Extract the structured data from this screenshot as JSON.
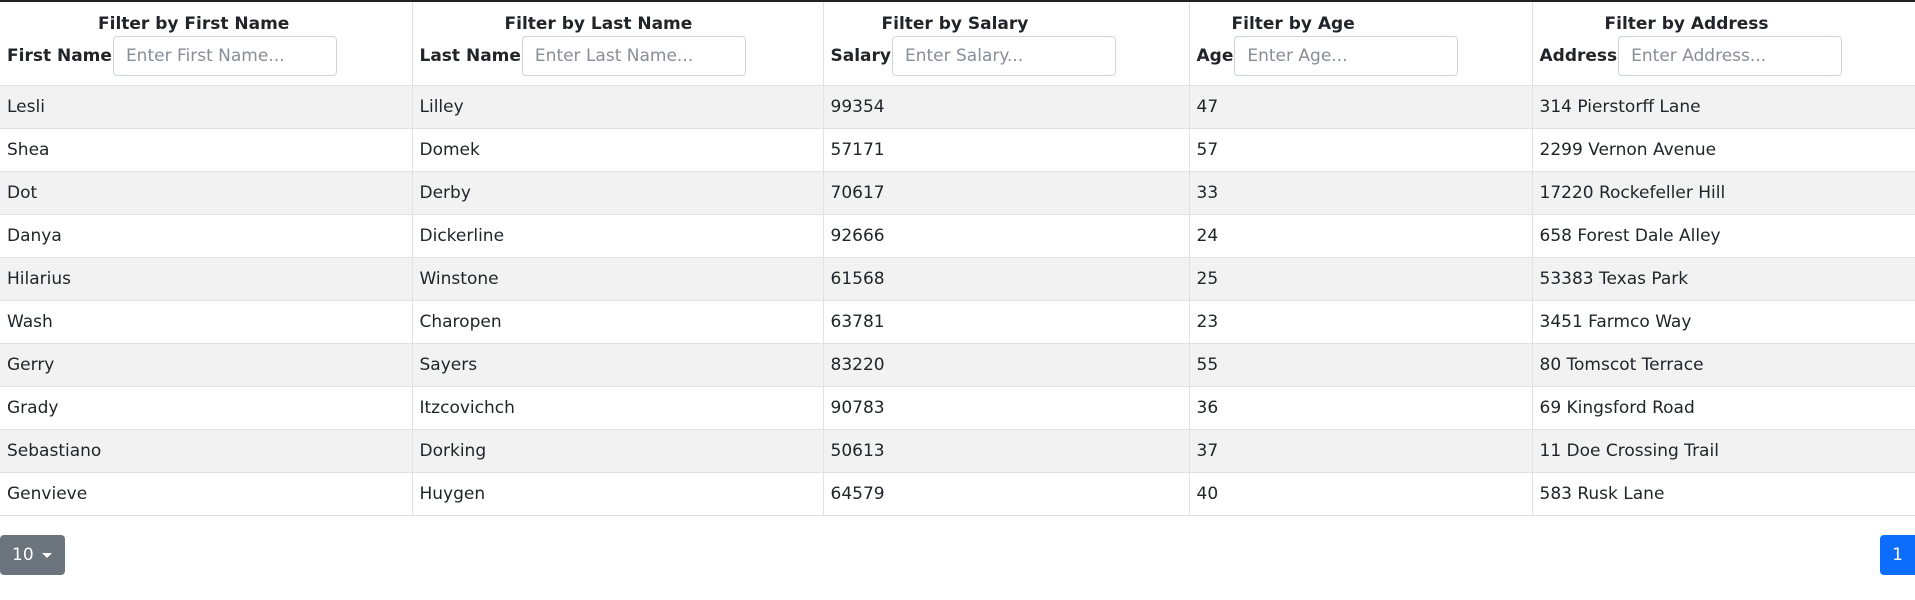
{
  "table": {
    "columns": [
      {
        "filter_title": "Filter by First Name",
        "label": "First Name",
        "placeholder": "Enter First Name..."
      },
      {
        "filter_title": "Filter by Last Name",
        "label": "Last Name",
        "placeholder": "Enter Last Name..."
      },
      {
        "filter_title": "Filter by Salary",
        "label": "Salary",
        "placeholder": "Enter Salary..."
      },
      {
        "filter_title": "Filter by Age",
        "label": "Age",
        "placeholder": "Enter Age..."
      },
      {
        "filter_title": "Filter by Address",
        "label": "Address",
        "placeholder": "Enter Address..."
      }
    ],
    "rows": [
      [
        "Lesli",
        "Lilley",
        "99354",
        "47",
        "314 Pierstorff Lane"
      ],
      [
        "Shea",
        "Domek",
        "57171",
        "57",
        "2299 Vernon Avenue"
      ],
      [
        "Dot",
        "Derby",
        "70617",
        "33",
        "17220 Rockefeller Hill"
      ],
      [
        "Danya",
        "Dickerline",
        "92666",
        "24",
        "658 Forest Dale Alley"
      ],
      [
        "Hilarius",
        "Winstone",
        "61568",
        "25",
        "53383 Texas Park"
      ],
      [
        "Wash",
        "Charopen",
        "63781",
        "23",
        "3451 Farmco Way"
      ],
      [
        "Gerry",
        "Sayers",
        "83220",
        "55",
        "80 Tomscot Terrace"
      ],
      [
        "Grady",
        "Itzcovichch",
        "90783",
        "36",
        "69 Kingsford Road"
      ],
      [
        "Sebastiano",
        "Dorking",
        "50613",
        "37",
        "11 Doe Crossing Trail"
      ],
      [
        "Genvieve",
        "Huygen",
        "64579",
        "40",
        "583 Rusk Lane"
      ]
    ]
  },
  "pagination": {
    "page_size": "10",
    "current_page": "1"
  },
  "colors": {
    "stripe": "#f2f2f2",
    "page_size_button": "#6c757d",
    "page_button": "#0d6efd",
    "border": "#dee2e6"
  }
}
